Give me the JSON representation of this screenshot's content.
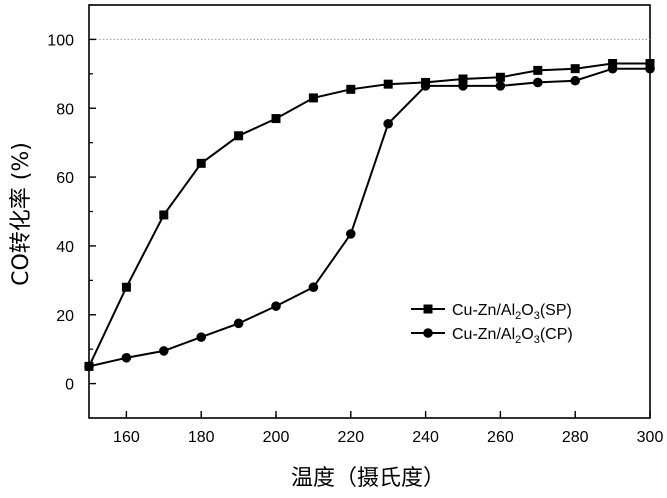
{
  "chart_data": {
    "type": "line",
    "xlabel": "温度（摄氏度）",
    "ylabel": "CO转化率  (%)",
    "xlim": [
      150,
      300
    ],
    "ylim": [
      -10,
      110
    ],
    "xticks": [
      160,
      180,
      200,
      220,
      240,
      260,
      280,
      300
    ],
    "yticks": [
      0,
      20,
      40,
      60,
      80,
      100
    ],
    "reference_line": {
      "y": 100,
      "style": "dotted"
    },
    "legend_position": "center-right",
    "series": [
      {
        "name": "Cu-Zn/Al2O3(SP)",
        "marker": "square",
        "x": [
          150,
          160,
          170,
          180,
          190,
          200,
          210,
          220,
          230,
          240,
          250,
          260,
          270,
          280,
          290,
          300
        ],
        "y": [
          5,
          28,
          49,
          64,
          72,
          77,
          83,
          85.5,
          87,
          87.5,
          88.5,
          89,
          91,
          91.5,
          93,
          93
        ]
      },
      {
        "name": "Cu-Zn/Al2O3(CP)",
        "marker": "circle",
        "x": [
          150,
          160,
          170,
          180,
          190,
          200,
          210,
          220,
          230,
          240,
          250,
          260,
          270,
          280,
          290,
          300
        ],
        "y": [
          5,
          7.5,
          9.5,
          13.5,
          17.5,
          22.5,
          28,
          43.5,
          75.5,
          86.5,
          86.5,
          86.5,
          87.5,
          88,
          91.5,
          91.5
        ]
      }
    ],
    "legend": [
      {
        "prefix": "Cu-Zn/Al",
        "sub1": "2",
        "mid": "O",
        "sub2": "3",
        "suffix": "(SP)",
        "marker": "square"
      },
      {
        "prefix": "Cu-Zn/Al",
        "sub1": "2",
        "mid": "O",
        "sub2": "3",
        "suffix": "(CP)",
        "marker": "circle"
      }
    ]
  }
}
